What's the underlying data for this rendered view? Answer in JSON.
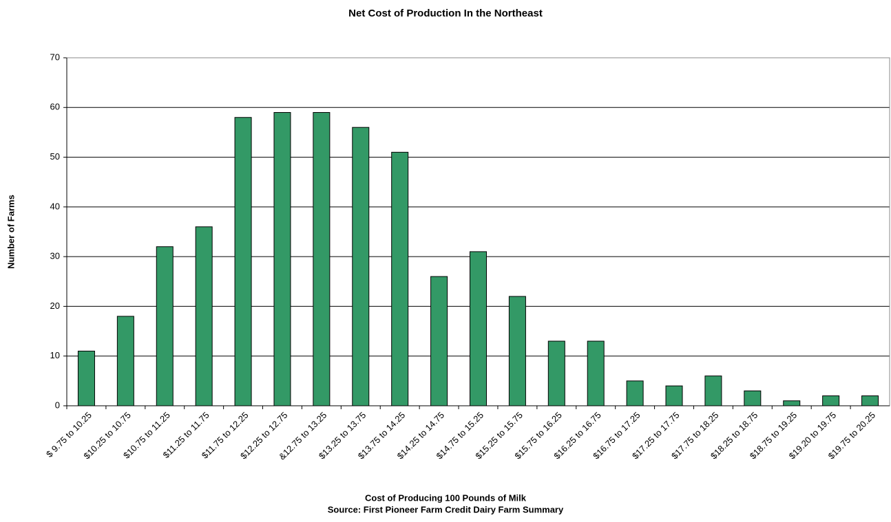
{
  "chart_data": {
    "type": "bar",
    "title": "Net Cost of Production In the Northeast",
    "xlabel": "Cost of Producing 100 Pounds of Milk",
    "source": "Source: First Pioneer Farm Credit Dairy Farm Summary",
    "ylabel": "Number of Farms",
    "categories": [
      "$ 9.75 to 10.25",
      "$10.25 to 10.75",
      "$10.75 to 11.25",
      "$11.25 to 11.75",
      "$11.75 to 12.25",
      "$12.25 to 12.75",
      "&12.75 to 13.25",
      "$13.25 to 13.75",
      "$13.75 to 14.25",
      "$14.25 to 14.75",
      "$14.75 to 15.25",
      "$15.25 to 15.75",
      "$15.75 to 16.25",
      "$16.25 to 16.75",
      "$16.75 to 17.25",
      "$17.25 to 17.75",
      "$17.75 to 18.25",
      "$18.25 to 18.75",
      "$18.75 to 19.25",
      "$19.20 to 19.75",
      "$19.75 to 20.25"
    ],
    "values": [
      11,
      18,
      32,
      36,
      58,
      59,
      59,
      56,
      51,
      26,
      31,
      22,
      13,
      13,
      5,
      4,
      6,
      3,
      1,
      2,
      2
    ],
    "color": "#339966",
    "ylim": [
      0,
      70
    ],
    "yticks": [
      0,
      10,
      20,
      30,
      40,
      50,
      60,
      70
    ],
    "grid": true
  }
}
